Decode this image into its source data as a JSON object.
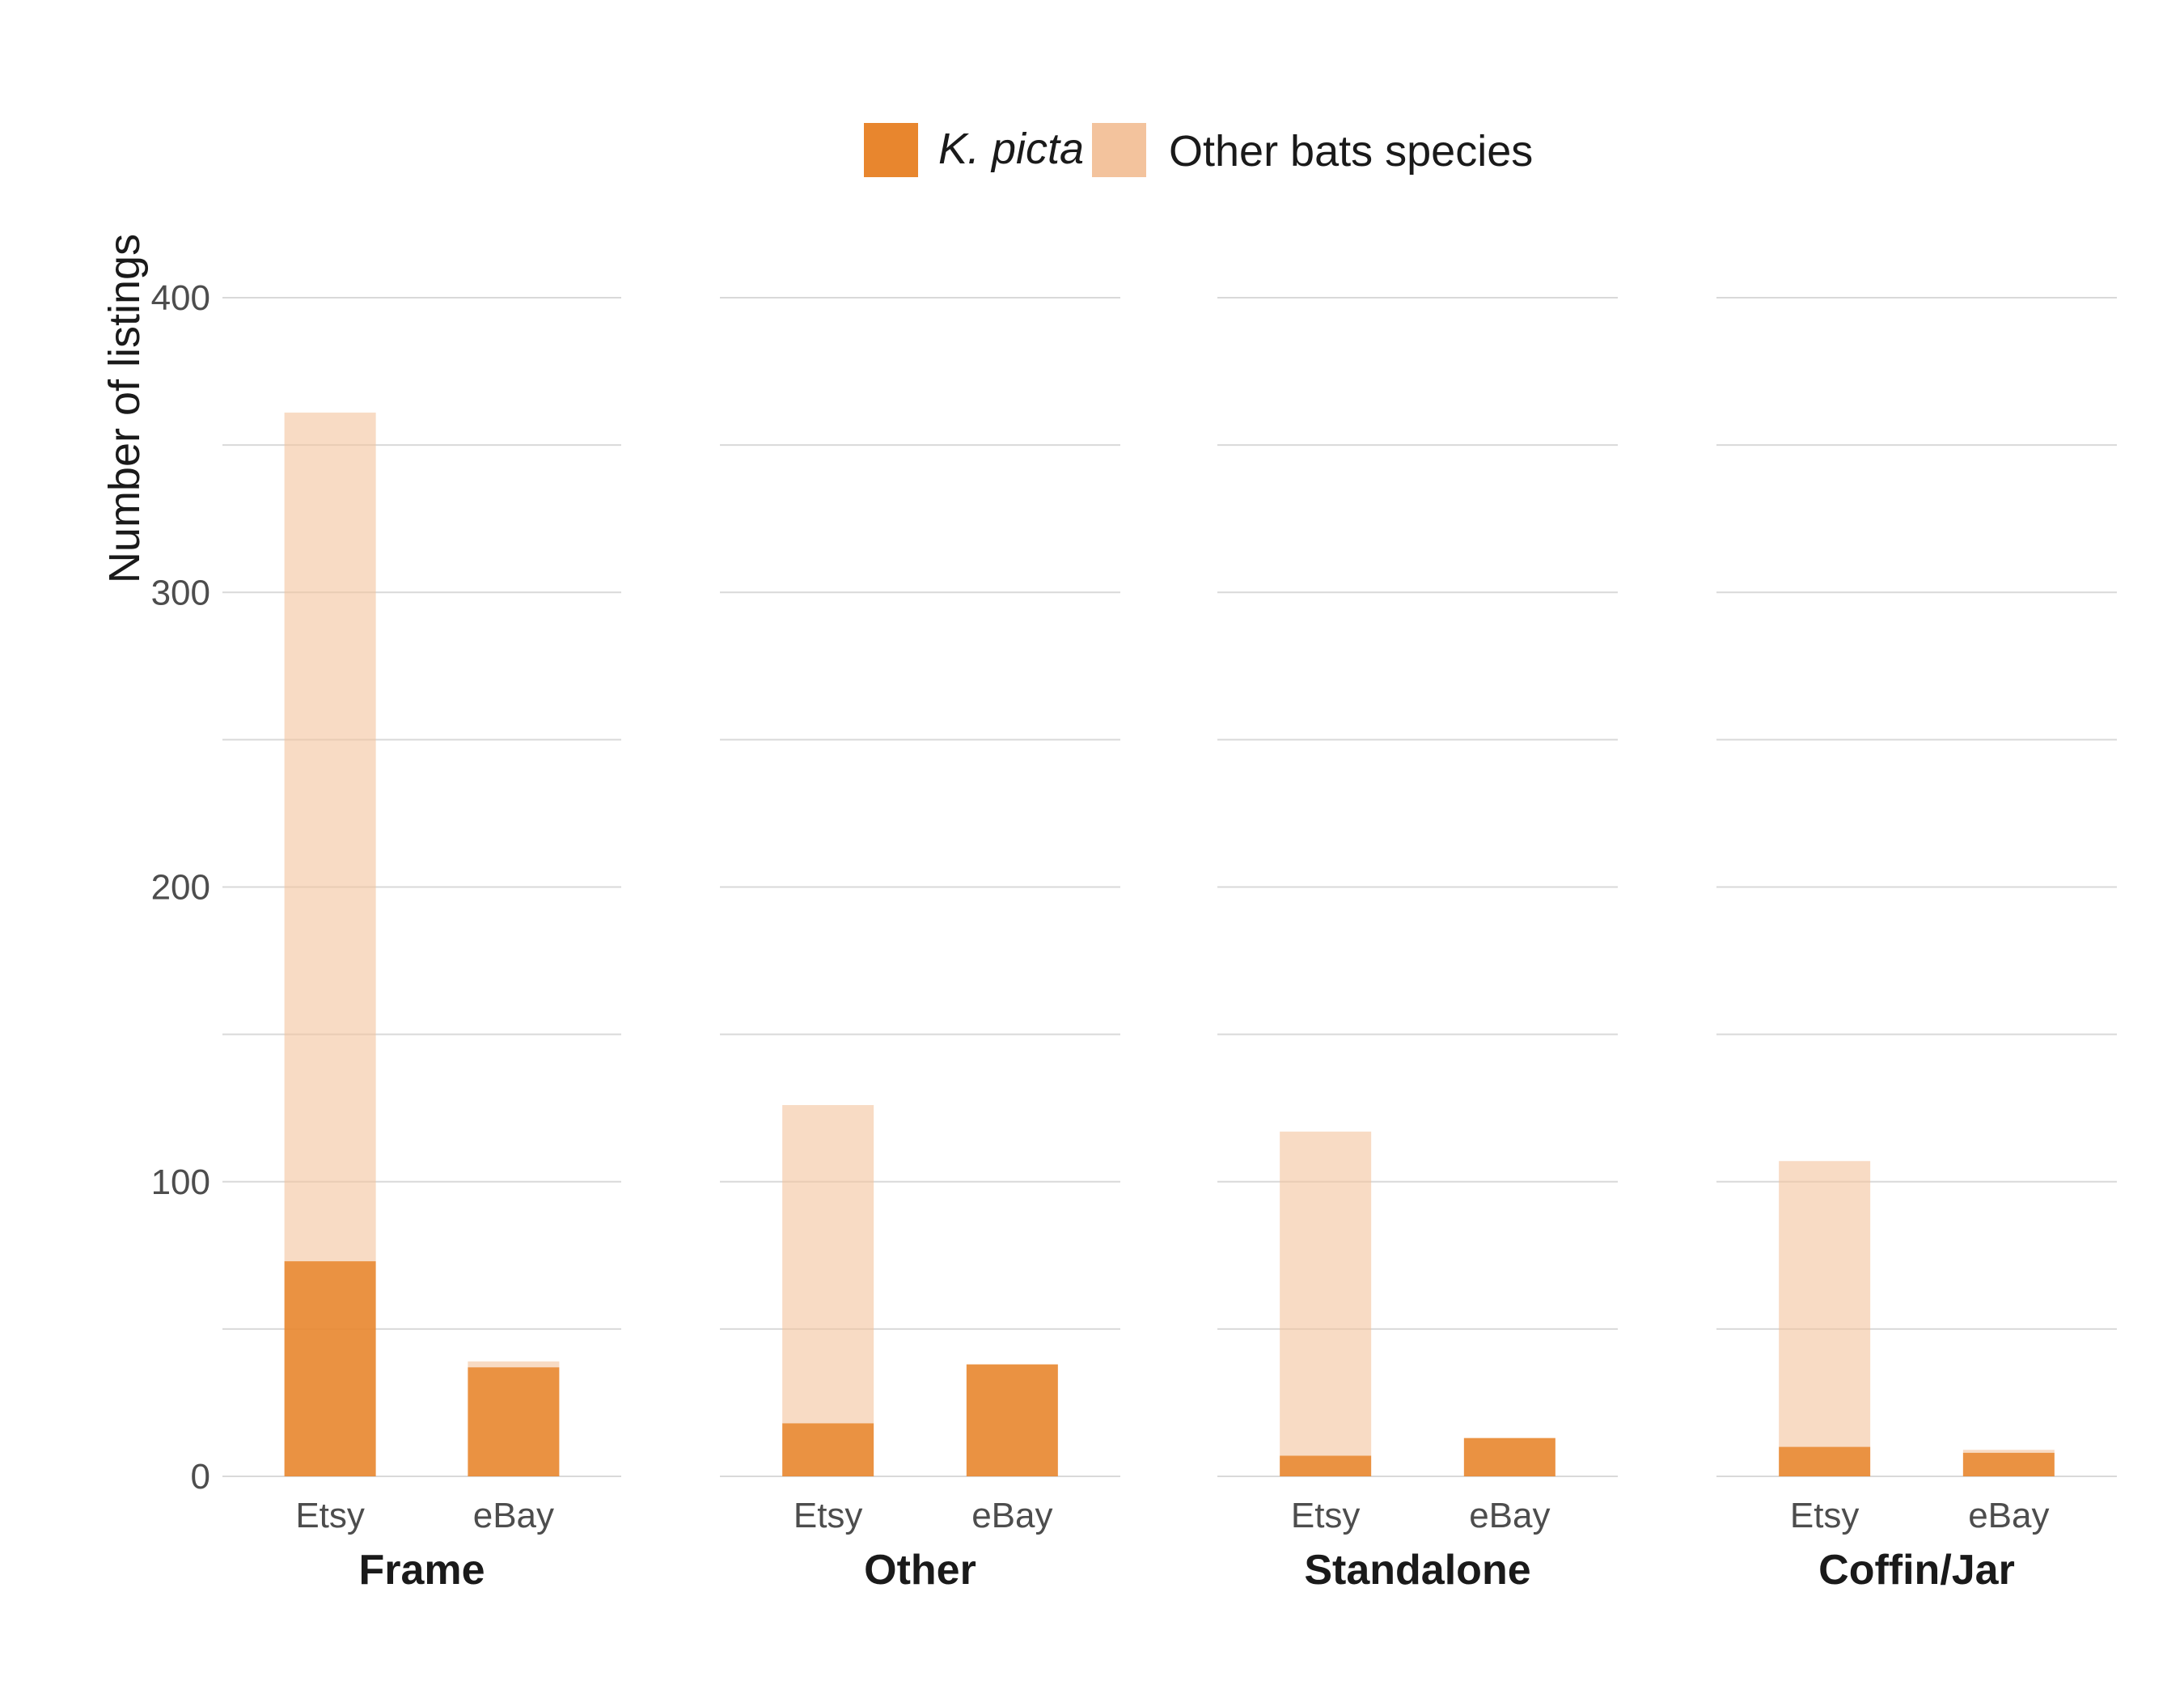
{
  "chart_data": {
    "type": "bar",
    "stacked": true,
    "ylabel": "Number of listings",
    "ylim": [
      0,
      400
    ],
    "yticks": [
      0,
      100,
      200,
      300,
      400
    ],
    "grid": true,
    "legend_position": "top",
    "series": [
      {
        "name": "K. picta",
        "color": "#e8862e"
      },
      {
        "name": "Other bats species",
        "color": "#f3c39d"
      }
    ],
    "facets": [
      {
        "label": "Frame",
        "bars": [
          {
            "category": "Etsy",
            "k_picta": 73,
            "total": 361
          },
          {
            "category": "eBay",
            "k_picta": 37,
            "total": 39
          }
        ]
      },
      {
        "label": "Other",
        "bars": [
          {
            "category": "Etsy",
            "k_picta": 18,
            "total": 126
          },
          {
            "category": "eBay",
            "k_picta": 38,
            "total": 38
          }
        ]
      },
      {
        "label": "Standalone",
        "bars": [
          {
            "category": "Etsy",
            "k_picta": 7,
            "total": 117
          },
          {
            "category": "eBay",
            "k_picta": 13,
            "total": 13
          }
        ]
      },
      {
        "label": "Coffin/Jar",
        "bars": [
          {
            "category": "Etsy",
            "k_picta": 10,
            "total": 107
          },
          {
            "category": "eBay",
            "k_picta": 8,
            "total": 9
          }
        ]
      }
    ]
  }
}
